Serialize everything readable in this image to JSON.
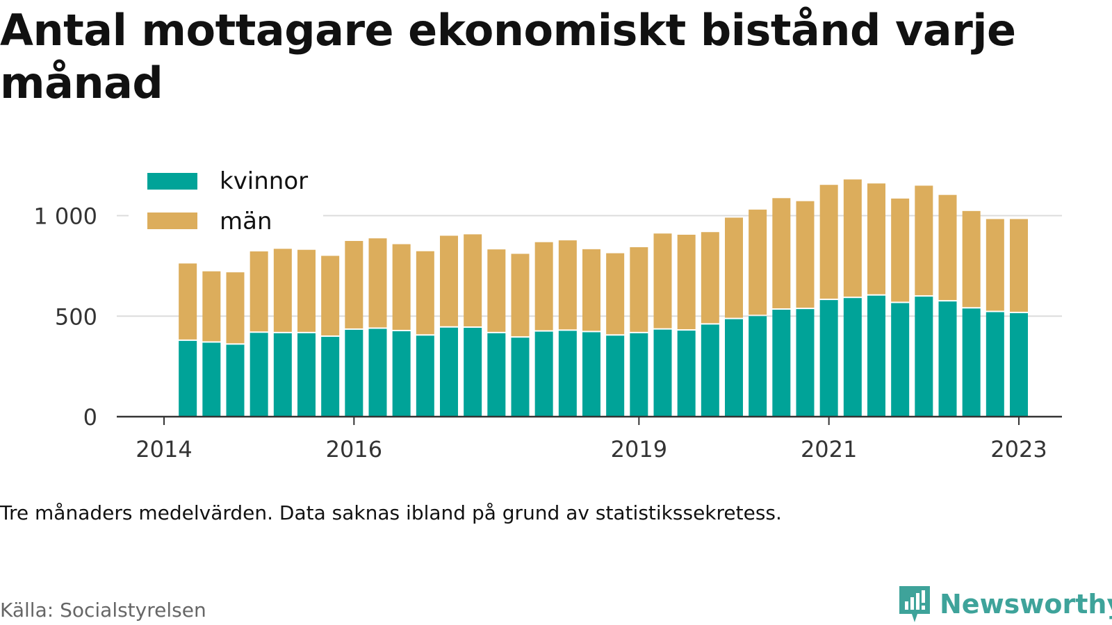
{
  "title": "Antal mottagare ekonomiskt bistånd varje månad",
  "note": "Tre månaders medelvärden. Data saknas ibland på grund av statistikssekretess.",
  "source": "Källa: Socialstyrelsen",
  "brand": "Newsworthy",
  "chart_data": {
    "type": "bar",
    "stacked": true,
    "x": [
      "2014-04",
      "2014-07",
      "2014-10",
      "2015-01",
      "2015-04",
      "2015-07",
      "2015-10",
      "2016-01",
      "2016-04",
      "2016-07",
      "2016-10",
      "2017-01",
      "2017-04",
      "2017-07",
      "2017-10",
      "2018-01",
      "2018-04",
      "2018-07",
      "2018-10",
      "2019-01",
      "2019-04",
      "2019-07",
      "2019-10",
      "2020-01",
      "2020-04",
      "2020-07",
      "2020-10",
      "2021-01",
      "2021-04",
      "2021-07",
      "2021-10",
      "2022-01",
      "2022-04",
      "2022-07",
      "2022-10",
      "2023-01"
    ],
    "series": [
      {
        "name": "kvinnor",
        "color": "#00a398",
        "values": [
          377,
          368,
          358,
          417,
          415,
          415,
          397,
          432,
          437,
          425,
          403,
          443,
          442,
          415,
          393,
          423,
          427,
          420,
          403,
          415,
          433,
          428,
          458,
          485,
          500,
          532,
          535,
          580,
          590,
          602,
          565,
          597,
          573,
          538,
          520,
          515
        ]
      },
      {
        "name": "män",
        "color": "#dcad5c",
        "values": [
          385,
          355,
          360,
          405,
          420,
          415,
          403,
          442,
          450,
          433,
          420,
          457,
          465,
          417,
          417,
          445,
          450,
          413,
          410,
          428,
          478,
          477,
          460,
          505,
          530,
          555,
          537,
          573,
          590,
          558,
          520,
          552,
          530,
          485,
          463,
          468
        ]
      }
    ],
    "xticks": [
      "2014",
      "2016",
      "2019",
      "2021",
      "2023"
    ],
    "yticks": [
      "0",
      "500",
      "1 000"
    ],
    "ylim": [
      0,
      1200
    ],
    "legend_position": "top-left"
  }
}
